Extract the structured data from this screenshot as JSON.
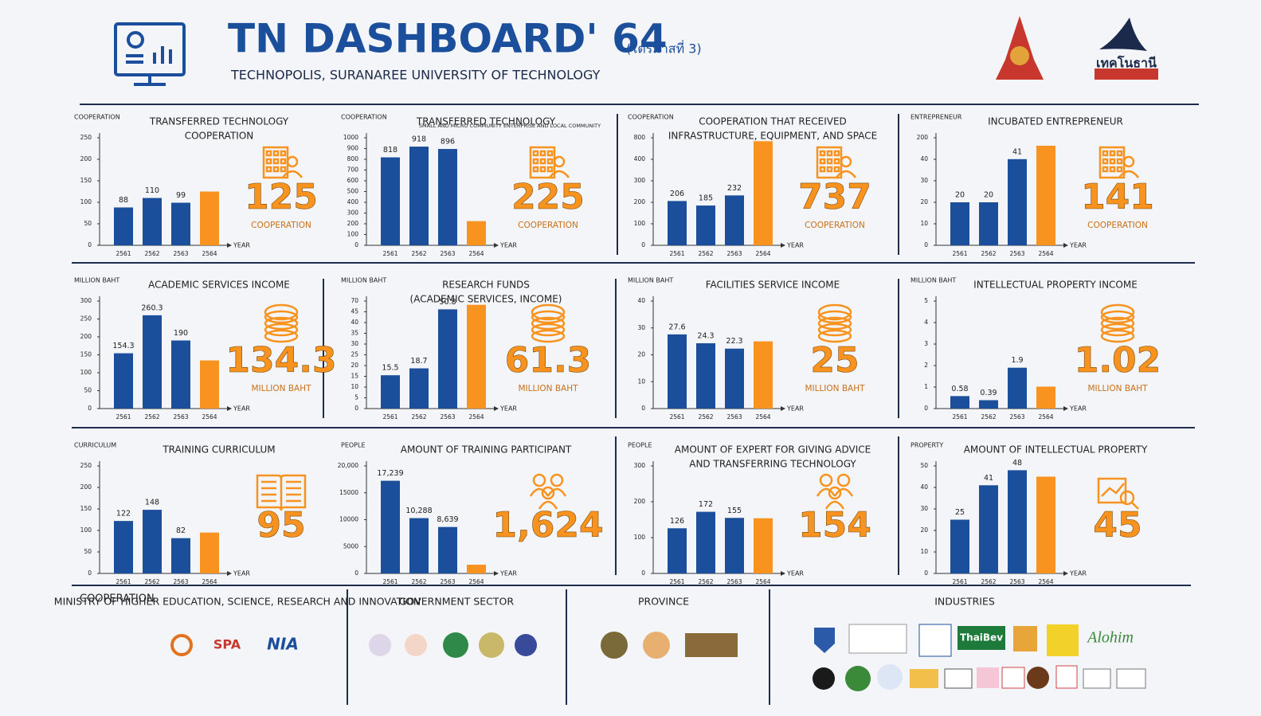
{
  "header": {
    "title": "TN DASHBOARD' 64",
    "quarter": "(ไตรมาสที่ 3)",
    "subtitle": "TECHNOPOLIS, SURANAREE UNIVERSITY OF TECHNOLOGY",
    "logo_text": "เทคโนธานี"
  },
  "chart_data": [
    {
      "type": "bar",
      "title": [
        "TRANSFERRED TECHNOLOGY",
        "COOPERATION"
      ],
      "y_label": "COOPERATION",
      "x_label": "YEAR",
      "unit": "COOPERATION",
      "categories": [
        "2561",
        "2562",
        "2563",
        "2564"
      ],
      "values": [
        88,
        110,
        99,
        125
      ],
      "colors": [
        "#1b4f9c",
        "#1b4f9c",
        "#1b4f9c",
        "#f7931e"
      ],
      "ylim": [
        0,
        250
      ],
      "yticks": [
        0,
        50,
        100,
        150,
        200,
        250
      ]
    },
    {
      "type": "bar",
      "title": [
        "TRANSFERRED TECHNOLOGY"
      ],
      "subtitle": "SMALL AND MICRO COMMUNITY ENTERPRISE AND LOCAL COMMUNITY",
      "y_label": "COOPERATION",
      "x_label": "YEAR",
      "unit": "COOPERATION",
      "categories": [
        "2561",
        "2562",
        "2563",
        "2564"
      ],
      "values": [
        818,
        918,
        896,
        225
      ],
      "colors": [
        "#1b4f9c",
        "#1b4f9c",
        "#1b4f9c",
        "#f7931e"
      ],
      "ylim": [
        0,
        1000
      ],
      "yticks": [
        0,
        100,
        200,
        300,
        400,
        500,
        600,
        700,
        800,
        900,
        1000
      ]
    },
    {
      "type": "bar",
      "title": [
        "COOPERATION THAT RECEIVED",
        "INFRASTRUCTURE, EQUIPMENT, AND SPACE"
      ],
      "y_label": "COOPERATION",
      "x_label": "YEAR",
      "unit": "COOPERATION",
      "categories": [
        "2561",
        "2562",
        "2563",
        "2564"
      ],
      "values": [
        206,
        185,
        232,
        737
      ],
      "colors": [
        "#1b4f9c",
        "#1b4f9c",
        "#1b4f9c",
        "#f7931e"
      ],
      "ylim": [
        0,
        800
      ],
      "yticks": [
        0,
        100,
        200,
        300,
        400,
        800
      ]
    },
    {
      "type": "bar",
      "title": [
        "INCUBATED ENTREPRENEUR"
      ],
      "y_label": "ENTREPRENEUR",
      "x_label": "YEAR",
      "unit": "COOPERATION",
      "categories": [
        "2561",
        "2562",
        "2563",
        "2564"
      ],
      "values": [
        20,
        20,
        41,
        141
      ],
      "colors": [
        "#1b4f9c",
        "#1b4f9c",
        "#1b4f9c",
        "#f7931e"
      ],
      "ylim": [
        0,
        200
      ],
      "yticks": [
        0,
        10,
        20,
        30,
        40,
        200
      ]
    },
    {
      "type": "bar",
      "title": [
        "ACADEMIC SERVICES INCOME"
      ],
      "y_label": "MILLION BAHT",
      "x_label": "YEAR",
      "unit": "MILLION BAHT",
      "categories": [
        "2561",
        "2562",
        "2563",
        "2564"
      ],
      "values": [
        154.3,
        260.3,
        190,
        134.3
      ],
      "colors": [
        "#1b4f9c",
        "#1b4f9c",
        "#1b4f9c",
        "#f7931e"
      ],
      "ylim": [
        0,
        300
      ],
      "yticks": [
        0,
        50,
        100,
        150,
        200,
        250,
        300
      ]
    },
    {
      "type": "bar",
      "title": [
        "RESEARCH FUNDS",
        "(ACADEMIC SERVICES, INCOME)"
      ],
      "y_label": "MILLION BAHT",
      "x_label": "YEAR",
      "unit": "MILLION BAHT",
      "categories": [
        "2561",
        "2562",
        "2563",
        "2564"
      ],
      "values": [
        15.5,
        18.7,
        50.8,
        61.3
      ],
      "colors": [
        "#1b4f9c",
        "#1b4f9c",
        "#1b4f9c",
        "#f7931e"
      ],
      "ylim": [
        0,
        70
      ],
      "yticks": [
        0,
        5,
        10,
        15,
        20,
        25,
        30,
        35,
        40,
        45,
        70
      ]
    },
    {
      "type": "bar",
      "title": [
        "FACILITIES SERVICE INCOME"
      ],
      "y_label": "MILLION BAHT",
      "x_label": "YEAR",
      "unit": "MILLION BAHT",
      "categories": [
        "2561",
        "2562",
        "2563",
        "2564"
      ],
      "values": [
        27.6,
        24.3,
        22.3,
        25
      ],
      "colors": [
        "#1b4f9c",
        "#1b4f9c",
        "#1b4f9c",
        "#f7931e"
      ],
      "ylim": [
        0,
        40
      ],
      "yticks": [
        0,
        10,
        20,
        30,
        40
      ]
    },
    {
      "type": "bar",
      "title": [
        "INTELLECTUAL PROPERTY INCOME"
      ],
      "y_label": "MILLION BAHT",
      "x_label": "YEAR",
      "unit": "MILLION BAHT",
      "categories": [
        "2561",
        "2562",
        "2563",
        "2564"
      ],
      "values": [
        0.58,
        0.39,
        1.9,
        1.02
      ],
      "colors": [
        "#1b4f9c",
        "#1b4f9c",
        "#1b4f9c",
        "#f7931e"
      ],
      "ylim": [
        0,
        5
      ],
      "yticks": [
        0,
        1,
        2,
        3,
        4,
        5
      ]
    },
    {
      "type": "bar",
      "title": [
        "TRAINING CURRICULUM"
      ],
      "y_label": "CURRICULUM",
      "x_label": "YEAR",
      "categories": [
        "2561",
        "2562",
        "2563",
        "2564"
      ],
      "values": [
        122,
        148,
        82,
        95
      ],
      "colors": [
        "#1b4f9c",
        "#1b4f9c",
        "#1b4f9c",
        "#f7931e"
      ],
      "ylim": [
        0,
        250
      ],
      "yticks": [
        0,
        50,
        100,
        150,
        200,
        250
      ]
    },
    {
      "type": "bar",
      "title": [
        "AMOUNT OF TRAINING PARTICIPANT"
      ],
      "y_label": "PEOPLE",
      "x_label": "YEAR",
      "categories": [
        "2561",
        "2562",
        "2563",
        "2564"
      ],
      "values": [
        17239,
        10288,
        8639,
        1624
      ],
      "value_labels": [
        "17,239",
        "10,288",
        "8,639",
        "1,624"
      ],
      "colors": [
        "#1b4f9c",
        "#1b4f9c",
        "#1b4f9c",
        "#f7931e"
      ],
      "ylim": [
        0,
        20000
      ],
      "yticks": [
        0,
        5000,
        10000,
        15000,
        {
          "value": 20000,
          "label": "20,000"
        }
      ]
    },
    {
      "type": "bar",
      "title": [
        "AMOUNT OF EXPERT FOR GIVING ADVICE",
        "AND TRANSFERRING TECHNOLOGY"
      ],
      "y_label": "PEOPLE",
      "x_label": "YEAR",
      "categories": [
        "2561",
        "2562",
        "2563",
        "2564"
      ],
      "values": [
        126,
        172,
        155,
        154
      ],
      "colors": [
        "#1b4f9c",
        "#1b4f9c",
        "#1b4f9c",
        "#f7931e"
      ],
      "ylim": [
        0,
        300
      ],
      "yticks": [
        0,
        100,
        200,
        300
      ]
    },
    {
      "type": "bar",
      "title": [
        "AMOUNT OF INTELLECTUAL PROPERTY"
      ],
      "y_label": "PROPERTY",
      "x_label": "YEAR",
      "categories": [
        "2561",
        "2562",
        "2563",
        "2564"
      ],
      "values": [
        25,
        41,
        48,
        45
      ],
      "colors": [
        "#1b4f9c",
        "#1b4f9c",
        "#1b4f9c",
        "#f7931e"
      ],
      "ylim": [
        0,
        50
      ],
      "yticks": [
        0,
        10,
        20,
        30,
        40,
        50
      ]
    }
  ],
  "cooperation": {
    "label": "COOPERATION",
    "sections": [
      "MINISTRY OF HIGHER EDUCATION, SCIENCE, RESEARCH AND INNOVATION",
      "GOVERNMENT SECTOR",
      "PROVINCE",
      "INDUSTRIES"
    ],
    "logos": [
      "SPA",
      "NIA",
      "ThaiBev",
      "Alohim"
    ]
  }
}
